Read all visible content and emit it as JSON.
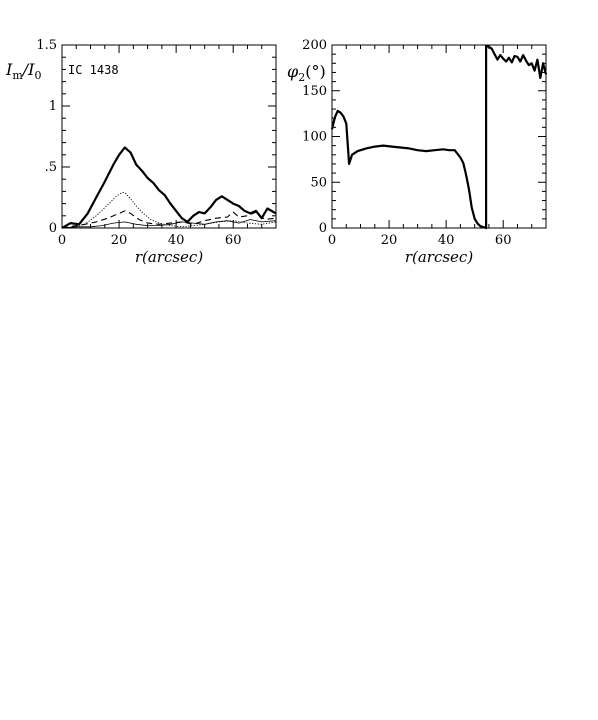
{
  "chart_data": [
    {
      "type": "line",
      "ylabel": "I_m/I_0",
      "xlabel": "r(arcsec)",
      "annotation": "IC 1438",
      "xlim": [
        0,
        75
      ],
      "ylim": [
        0,
        1.5
      ],
      "x_ticks": [
        "0",
        "20",
        "40",
        "60"
      ],
      "y_ticks": [
        "0",
        ".5",
        "1",
        "1.5"
      ],
      "series": [
        {
          "style": "solid-thick",
          "x": [
            0,
            3,
            6,
            9,
            12,
            15,
            18,
            20,
            22,
            24,
            26,
            28,
            30,
            32,
            34,
            36,
            38,
            40,
            42,
            44,
            46,
            48,
            50,
            52,
            54,
            56,
            58,
            60,
            62,
            64,
            66,
            68,
            70,
            72,
            75
          ],
          "y": [
            0,
            0.04,
            0.03,
            0.12,
            0.25,
            0.38,
            0.52,
            0.6,
            0.66,
            0.62,
            0.52,
            0.47,
            0.41,
            0.37,
            0.31,
            0.27,
            0.2,
            0.14,
            0.08,
            0.05,
            0.1,
            0.13,
            0.12,
            0.17,
            0.23,
            0.26,
            0.23,
            0.2,
            0.18,
            0.14,
            0.12,
            0.14,
            0.08,
            0.16,
            0.12
          ]
        },
        {
          "style": "dotted",
          "x": [
            0,
            5,
            8,
            12,
            16,
            19,
            21,
            22,
            24,
            26,
            28,
            31,
            34,
            38,
            42,
            46,
            50,
            55,
            60,
            65,
            70,
            75
          ],
          "y": [
            0,
            0.01,
            0.03,
            0.1,
            0.19,
            0.26,
            0.29,
            0.29,
            0.24,
            0.18,
            0.13,
            0.07,
            0.04,
            0.02,
            0.01,
            0.02,
            0.03,
            0.05,
            0.06,
            0.04,
            0.03,
            0.05
          ]
        },
        {
          "style": "dashed",
          "x": [
            0,
            5,
            8,
            12,
            16,
            20,
            22,
            24,
            27,
            30,
            34,
            38,
            42,
            46,
            50,
            54,
            58,
            60,
            62,
            65,
            68,
            71,
            75
          ],
          "y": [
            0,
            0.02,
            0.03,
            0.05,
            0.08,
            0.12,
            0.14,
            0.12,
            0.07,
            0.04,
            0.03,
            0.04,
            0.05,
            0.03,
            0.06,
            0.08,
            0.09,
            0.13,
            0.09,
            0.1,
            0.13,
            0.07,
            0.08
          ]
        },
        {
          "style": "solid-thin",
          "x": [
            0,
            5,
            10,
            14,
            18,
            22,
            26,
            30,
            34,
            38,
            42,
            46,
            50,
            54,
            58,
            62,
            66,
            70,
            75
          ],
          "y": [
            0,
            0.01,
            0.01,
            0.02,
            0.04,
            0.05,
            0.03,
            0.02,
            0.02,
            0.03,
            0.05,
            0.04,
            0.03,
            0.05,
            0.06,
            0.04,
            0.07,
            0.05,
            0.06
          ]
        }
      ]
    },
    {
      "type": "line",
      "ylabel": "φ₂(°)",
      "xlabel": "r(arcsec)",
      "xlim": [
        0,
        75
      ],
      "ylim": [
        0,
        200
      ],
      "x_ticks": [
        "0",
        "20",
        "40",
        "60"
      ],
      "y_ticks": [
        "0",
        "50",
        "100",
        "150",
        "200"
      ],
      "series": [
        {
          "style": "solid-thick",
          "x": [
            0,
            1,
            2,
            3,
            4,
            5,
            6,
            7,
            9,
            12,
            15,
            18,
            21,
            24,
            27,
            30,
            33,
            36,
            39,
            41,
            43,
            45,
            46,
            47,
            48,
            49,
            50,
            51,
            52,
            53,
            54,
            54,
            55,
            56,
            57,
            58,
            59,
            60,
            61,
            62,
            63,
            64,
            65,
            66,
            67,
            68,
            69,
            70,
            71,
            72,
            73,
            74,
            75
          ],
          "y": [
            108,
            121,
            128,
            126,
            122,
            114,
            70,
            80,
            84,
            87,
            89,
            90,
            89,
            88,
            87,
            85,
            84,
            85,
            86,
            85,
            85,
            77,
            71,
            58,
            42,
            22,
            10,
            5,
            2,
            1,
            0,
            199,
            198,
            196,
            190,
            184,
            189,
            185,
            182,
            186,
            181,
            188,
            187,
            182,
            189,
            183,
            178,
            180,
            172,
            184,
            164,
            180,
            168
          ]
        }
      ]
    }
  ]
}
